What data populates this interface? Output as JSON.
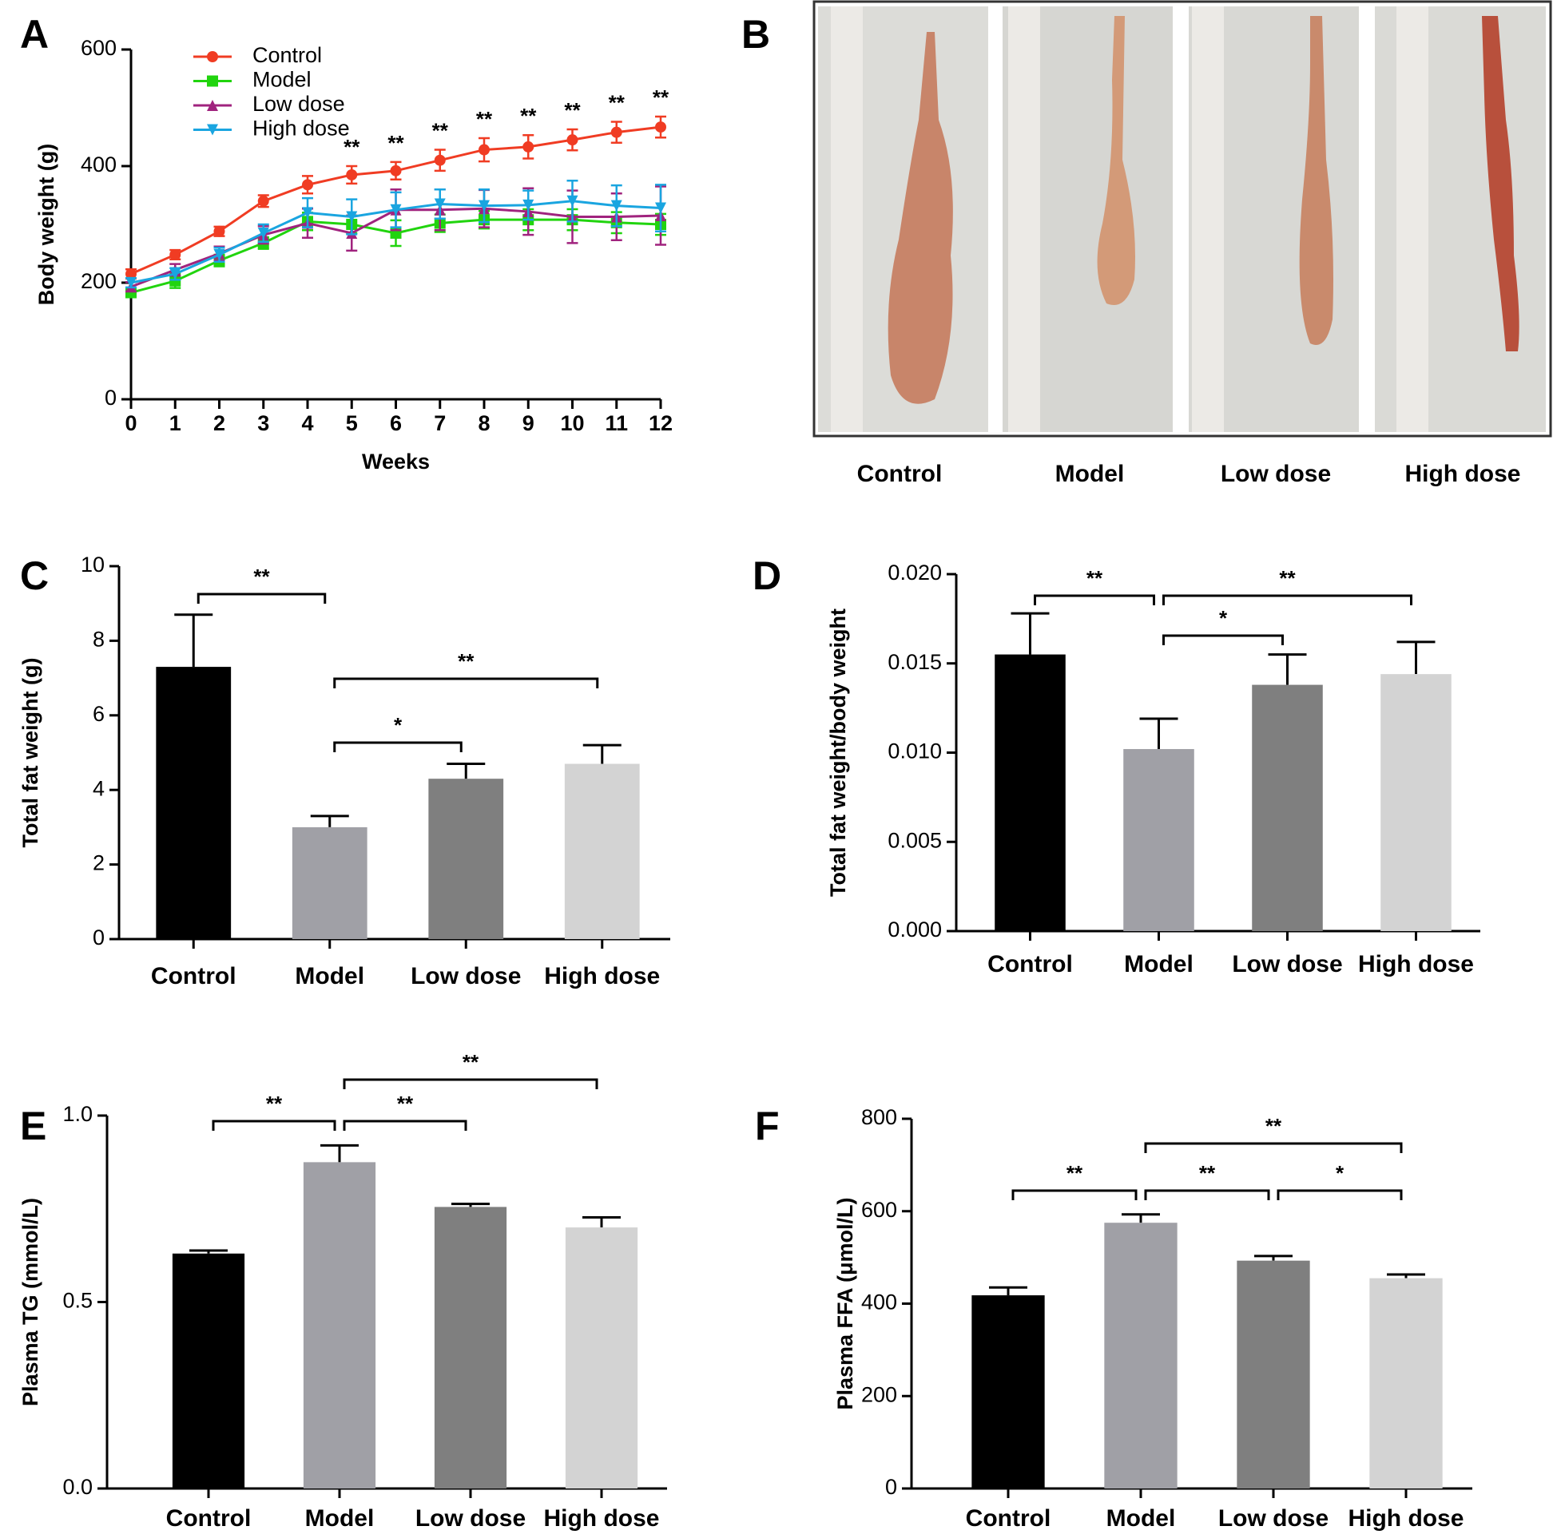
{
  "chart_data": [
    {
      "type": "line",
      "panel": "A",
      "xlabel": "Weeks",
      "ylabel": "Body weight (g)",
      "x": [
        0,
        1,
        2,
        3,
        4,
        5,
        6,
        7,
        8,
        9,
        10,
        11,
        12
      ],
      "xlim": [
        0,
        12
      ],
      "xticks": [
        0,
        1,
        2,
        3,
        4,
        5,
        6,
        7,
        8,
        9,
        10,
        11,
        12
      ],
      "ylim": [
        0,
        600
      ],
      "yticks": [
        0,
        200,
        400,
        600
      ],
      "series": [
        {
          "name": "Control",
          "color": "#f03c23",
          "marker": "circle",
          "values": [
            215,
            248,
            288,
            340,
            368,
            385,
            392,
            410,
            428,
            433,
            445,
            458,
            467
          ],
          "errors": [
            8,
            8,
            8,
            10,
            15,
            15,
            15,
            18,
            20,
            20,
            18,
            18,
            18
          ]
        },
        {
          "name": "Model",
          "color": "#21d40e",
          "marker": "square",
          "values": [
            183,
            203,
            238,
            268,
            305,
            300,
            285,
            302,
            308,
            308,
            308,
            303,
            300
          ],
          "errors": [
            8,
            12,
            10,
            10,
            15,
            15,
            22,
            15,
            15,
            18,
            18,
            18,
            18
          ]
        },
        {
          "name": "Low dose",
          "color": "#a0237e",
          "marker": "triangle-up",
          "values": [
            193,
            222,
            250,
            282,
            302,
            285,
            325,
            325,
            327,
            322,
            313,
            313,
            315
          ],
          "errors": [
            8,
            10,
            12,
            15,
            25,
            30,
            35,
            35,
            32,
            40,
            45,
            40,
            50
          ]
        },
        {
          "name": "High dose",
          "color": "#1aa5e0",
          "marker": "triangle-down",
          "values": [
            200,
            215,
            248,
            285,
            320,
            313,
            325,
            335,
            332,
            333,
            340,
            332,
            328
          ],
          "errors": [
            8,
            10,
            12,
            15,
            25,
            30,
            30,
            25,
            28,
            25,
            35,
            35,
            40
          ]
        }
      ],
      "annotations": [
        {
          "text": "**",
          "x": 5
        },
        {
          "text": "**",
          "x": 6
        },
        {
          "text": "**",
          "x": 7
        },
        {
          "text": "**",
          "x": 8
        },
        {
          "text": "**",
          "x": 9
        },
        {
          "text": "**",
          "x": 10
        },
        {
          "text": "**",
          "x": 11
        },
        {
          "text": "**",
          "x": 12
        }
      ]
    },
    {
      "type": "bar",
      "panel": "C",
      "ylabel": "Total fat weight (g)",
      "categories": [
        "Control",
        "Model",
        "Low dose",
        "High dose"
      ],
      "values": [
        7.3,
        3.0,
        4.3,
        4.7
      ],
      "errors": [
        1.4,
        0.3,
        0.4,
        0.5
      ],
      "colors": [
        "#000000",
        "#a0a0a6",
        "#7f7f7f",
        "#d3d3d3"
      ],
      "ylim": [
        0,
        10
      ],
      "yticks": [
        0,
        2,
        4,
        6,
        8,
        10
      ],
      "annotations": [
        {
          "text": "**",
          "between": [
            0,
            1
          ]
        },
        {
          "text": "**",
          "between": [
            1,
            3
          ]
        },
        {
          "text": "*",
          "between": [
            1,
            2
          ]
        }
      ]
    },
    {
      "type": "bar",
      "panel": "D",
      "ylabel": "Total fat weight/body weight",
      "categories": [
        "Control",
        "Model",
        "Low dose",
        "High dose"
      ],
      "values": [
        0.0155,
        0.0102,
        0.0138,
        0.0144
      ],
      "errors": [
        0.0023,
        0.0017,
        0.0017,
        0.0018
      ],
      "colors": [
        "#000000",
        "#a0a0a6",
        "#7f7f7f",
        "#d3d3d3"
      ],
      "ylim": [
        0,
        0.02
      ],
      "yticks": [
        {
          "value": 0,
          "label": "0.000"
        },
        0.005,
        {
          "value": 0.01,
          "label": "0.010"
        },
        0.015,
        {
          "value": 0.02,
          "label": "0.020"
        }
      ],
      "annotations": [
        {
          "text": "**",
          "between": [
            0,
            1
          ]
        },
        {
          "text": "**",
          "between": [
            1,
            3
          ]
        },
        {
          "text": "*",
          "between": [
            1,
            2
          ]
        }
      ]
    },
    {
      "type": "bar",
      "panel": "E",
      "ylabel": "Plasma TG (mmol/L)",
      "categories": [
        "Control",
        "Model",
        "Low dose",
        "High dose"
      ],
      "values": [
        0.63,
        0.875,
        0.755,
        0.7
      ],
      "errors": [
        0.008,
        0.045,
        0.008,
        0.027
      ],
      "colors": [
        "#000000",
        "#a0a0a6",
        "#7f7f7f",
        "#d3d3d3"
      ],
      "ylim": [
        0,
        1
      ],
      "yticks": [
        {
          "value": 0,
          "label": "0.0"
        },
        0.5,
        {
          "value": 1,
          "label": "1.0"
        }
      ],
      "annotations": [
        {
          "text": "**",
          "between": [
            0,
            1
          ]
        },
        {
          "text": "**",
          "between": [
            1,
            2
          ]
        },
        {
          "text": "**",
          "between": [
            1,
            3
          ]
        }
      ]
    },
    {
      "type": "bar",
      "panel": "F",
      "ylabel": "Plasma FFA (μmol/L)",
      "categories": [
        "Control",
        "Model",
        "Low dose",
        "High dose"
      ],
      "values": [
        418,
        575,
        493,
        455
      ],
      "errors": [
        17,
        18,
        10,
        8
      ],
      "colors": [
        "#000000",
        "#a0a0a6",
        "#7f7f7f",
        "#d3d3d3"
      ],
      "ylim": [
        0,
        800
      ],
      "yticks": [
        0,
        200,
        400,
        600,
        800
      ],
      "annotations": [
        {
          "text": "**",
          "between": [
            0,
            1
          ]
        },
        {
          "text": "**",
          "between": [
            1,
            2
          ]
        },
        {
          "text": "*",
          "between": [
            2,
            3
          ]
        },
        {
          "text": "**",
          "between": [
            1,
            3
          ]
        }
      ]
    }
  ],
  "photo_panel": {
    "panel": "B",
    "captions": [
      "Control",
      "Model",
      "Low dose",
      "High dose"
    ]
  }
}
